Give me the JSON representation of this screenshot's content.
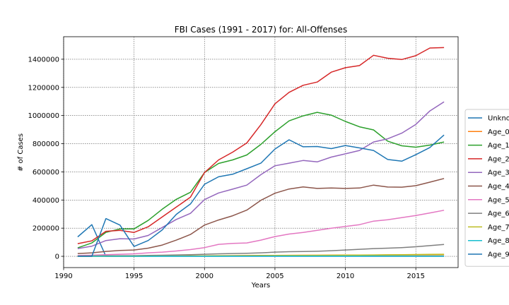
{
  "chart_data": {
    "type": "line",
    "title": "FBI Cases (1991 - 2017) for: All-Offenses",
    "xlabel": "Years",
    "ylabel": "# of Cases",
    "xlim": [
      1990,
      2018
    ],
    "ylim": [
      -80000,
      1560000
    ],
    "x_ticks": [
      1990,
      1995,
      2000,
      2005,
      2010,
      2015
    ],
    "y_ticks": [
      0,
      200000,
      400000,
      600000,
      800000,
      1000000,
      1200000,
      1400000
    ],
    "grid": true,
    "legend_position": "right",
    "x": [
      1991,
      1992,
      1993,
      1994,
      1995,
      1996,
      1997,
      1998,
      1999,
      2000,
      2001,
      2002,
      2003,
      2004,
      2005,
      2006,
      2007,
      2008,
      2009,
      2010,
      2011,
      2012,
      2013,
      2014,
      2015,
      2016,
      2017
    ],
    "series": [
      {
        "name": "Unknown",
        "color": "#1f77b4",
        "values": [
          138000,
          225000,
          0,
          0,
          0,
          0,
          0,
          0,
          0,
          0,
          0,
          0,
          0,
          0,
          0,
          0,
          0,
          0,
          0,
          0,
          0,
          0,
          0,
          0,
          0,
          0,
          0
        ]
      },
      {
        "name": "Age_0",
        "color": "#ff7f0e",
        "values": [
          0,
          0,
          0,
          0,
          0,
          1000,
          2000,
          3000,
          3500,
          4000,
          5000,
          5500,
          6000,
          6500,
          7000,
          7500,
          8000,
          8000,
          8500,
          9000,
          9000,
          9500,
          10000,
          10000,
          10500,
          11000,
          11500
        ]
      },
      {
        "name": "Age_1",
        "color": "#2ca02c",
        "values": [
          60000,
          95000,
          170000,
          195000,
          195000,
          255000,
          335000,
          405000,
          455000,
          595000,
          660000,
          685000,
          720000,
          795000,
          885000,
          962000,
          998000,
          1023000,
          1003000,
          958000,
          920000,
          898000,
          818000,
          785000,
          775000,
          790000,
          812000
        ]
      },
      {
        "name": "Age_2",
        "color": "#d62728",
        "values": [
          90000,
          110000,
          178000,
          185000,
          170000,
          210000,
          280000,
          350000,
          420000,
          595000,
          685000,
          740000,
          805000,
          935000,
          1083000,
          1165000,
          1215000,
          1238000,
          1308000,
          1340000,
          1355000,
          1428000,
          1407000,
          1398000,
          1425000,
          1480000,
          1483000
        ]
      },
      {
        "name": "Age_3",
        "color": "#9467bd",
        "values": [
          55000,
          72000,
          112000,
          125000,
          123000,
          148000,
          205000,
          262000,
          305000,
          403000,
          450000,
          477000,
          506000,
          580000,
          643000,
          662000,
          681000,
          671000,
          705000,
          728000,
          752000,
          812000,
          835000,
          875000,
          937000,
          1033000,
          1097000
        ]
      },
      {
        "name": "Age_4",
        "color": "#8c564b",
        "values": [
          20000,
          25000,
          35000,
          42000,
          45000,
          58000,
          80000,
          115000,
          155000,
          222000,
          258000,
          288000,
          328000,
          398000,
          448000,
          478000,
          493000,
          482000,
          485000,
          482000,
          485000,
          506000,
          492000,
          491000,
          502000,
          527000,
          553000
        ]
      },
      {
        "name": "Age_5",
        "color": "#e377c2",
        "values": [
          6000,
          8000,
          12000,
          15000,
          18000,
          25000,
          30000,
          38000,
          48000,
          62000,
          85000,
          92000,
          95000,
          115000,
          140000,
          158000,
          170000,
          185000,
          200000,
          212000,
          225000,
          250000,
          260000,
          275000,
          290000,
          308000,
          327000
        ]
      },
      {
        "name": "Age_6",
        "color": "#7f7f7f",
        "values": [
          2000,
          3000,
          4000,
          5000,
          5000,
          7000,
          8000,
          10000,
          12000,
          15000,
          18000,
          20000,
          22000,
          25000,
          30000,
          33000,
          34000,
          36000,
          40000,
          45000,
          50000,
          55000,
          58000,
          62000,
          68000,
          76000,
          84000
        ]
      },
      {
        "name": "Age_7",
        "color": "#bcbd22",
        "values": [
          500,
          600,
          800,
          1000,
          1000,
          1500,
          2000,
          2500,
          3000,
          3500,
          4000,
          4500,
          5000,
          5500,
          6000,
          6500,
          7000,
          7500,
          8000,
          8500,
          9000,
          10000,
          11000,
          12000,
          13000,
          14000,
          15000
        ]
      },
      {
        "name": "Age_8",
        "color": "#17becf",
        "values": [
          100,
          150,
          200,
          250,
          300,
          400,
          500,
          600,
          700,
          800,
          900,
          1000,
          1100,
          1200,
          1300,
          1400,
          1500,
          1600,
          1700,
          1800,
          1900,
          2000,
          2100,
          2200,
          2300,
          2400,
          2500
        ]
      },
      {
        "name": "Age_9",
        "color": "#1f77b4",
        "values": [
          0,
          0,
          268000,
          222000,
          70000,
          112000,
          188000,
          298000,
          372000,
          512000,
          565000,
          583000,
          622000,
          662000,
          762000,
          828000,
          778000,
          780000,
          765000,
          787000,
          770000,
          752000,
          688000,
          676000,
          722000,
          773000,
          862000
        ]
      }
    ],
    "legend_labels": [
      "Unkno",
      "Age_0",
      "Age_1",
      "Age_2",
      "Age_3",
      "Age_4",
      "Age_5",
      "Age_6",
      "Age_7",
      "Age_8",
      "Age_9"
    ]
  }
}
